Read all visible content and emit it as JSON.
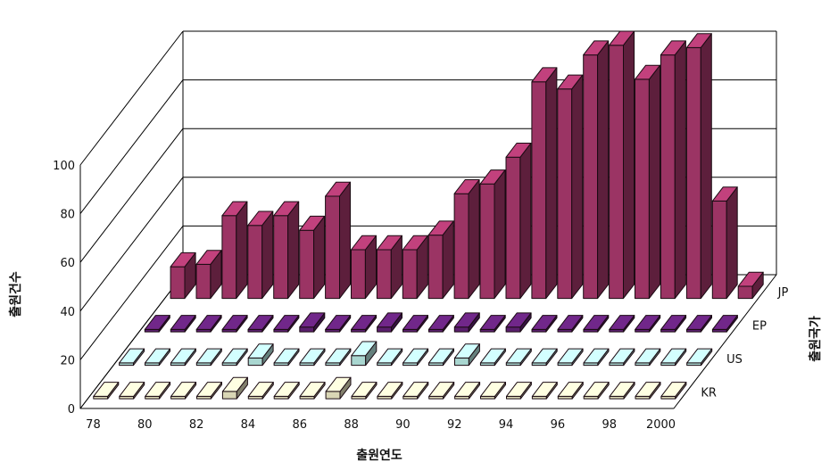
{
  "chart_data": {
    "type": "bar",
    "subtype": "3d-grouped",
    "xlabel": "출원연도",
    "ylabel": "출원건수",
    "zlabel": "출원국가",
    "ylim": [
      0,
      100
    ],
    "yticks": [
      "0",
      "20",
      "40",
      "60",
      "80",
      "100"
    ],
    "categories": [
      "78",
      "79",
      "80",
      "81",
      "82",
      "83",
      "84",
      "85",
      "86",
      "87",
      "88",
      "89",
      "90",
      "91",
      "92",
      "93",
      "94",
      "95",
      "96",
      "97",
      "98",
      "99",
      "2000"
    ],
    "xtick_labels": [
      "78",
      "80",
      "82",
      "84",
      "86",
      "88",
      "90",
      "92",
      "94",
      "96",
      "98",
      "2000"
    ],
    "series": [
      {
        "name": "KR",
        "color": "#d9d6b5",
        "values": [
          1,
          1,
          1,
          1,
          1,
          3,
          1,
          1,
          1,
          3,
          1,
          1,
          1,
          1,
          1,
          1,
          1,
          1,
          1,
          1,
          1,
          1,
          1
        ]
      },
      {
        "name": "US",
        "color": "#a9d6d0",
        "values": [
          1,
          1,
          1,
          1,
          1,
          3,
          1,
          1,
          1,
          4,
          1,
          1,
          1,
          3,
          1,
          1,
          1,
          1,
          1,
          1,
          1,
          1,
          1
        ]
      },
      {
        "name": "EP",
        "color": "#5a1f6e",
        "values": [
          1,
          1,
          1,
          1,
          1,
          1,
          2,
          1,
          1,
          2,
          1,
          1,
          2,
          1,
          2,
          1,
          1,
          1,
          1,
          1,
          1,
          1,
          1
        ]
      },
      {
        "name": "JP",
        "color": "#9b3464",
        "values": [
          13,
          14,
          34,
          30,
          34,
          28,
          42,
          20,
          20,
          20,
          26,
          43,
          47,
          58,
          89,
          86,
          100,
          104,
          90,
          100,
          103,
          40,
          5
        ]
      }
    ],
    "grid": true,
    "legend": "none"
  }
}
